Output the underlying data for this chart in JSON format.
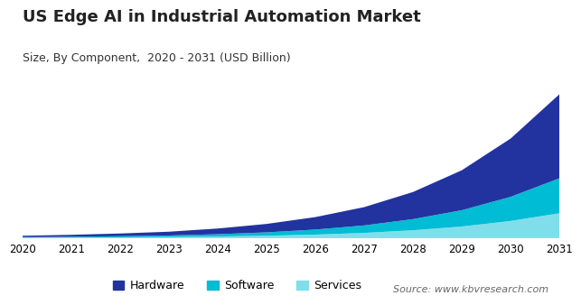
{
  "title": "US Edge AI in Industrial Automation Market",
  "subtitle": "Size, By Component,  2020 - 2031 (USD Billion)",
  "source": "Source: www.kbvresearch.com",
  "years": [
    2020,
    2021,
    2022,
    2023,
    2024,
    2025,
    2026,
    2027,
    2028,
    2029,
    2030,
    2031
  ],
  "hardware": [
    0.1,
    0.14,
    0.2,
    0.28,
    0.42,
    0.62,
    0.92,
    1.35,
    2.0,
    2.95,
    4.3,
    6.2
  ],
  "software": [
    0.045,
    0.062,
    0.085,
    0.115,
    0.17,
    0.25,
    0.37,
    0.55,
    0.82,
    1.2,
    1.78,
    2.58
  ],
  "services": [
    0.032,
    0.044,
    0.06,
    0.082,
    0.122,
    0.18,
    0.265,
    0.39,
    0.585,
    0.86,
    1.27,
    1.84
  ],
  "color_hardware": "#2233a0",
  "color_software": "#00bcd4",
  "color_services": "#80deea",
  "legend_labels": [
    "Hardware",
    "Software",
    "Services"
  ],
  "bg_color": "#ffffff",
  "title_fontsize": 13,
  "subtitle_fontsize": 9,
  "source_fontsize": 8,
  "tick_fontsize": 8.5
}
